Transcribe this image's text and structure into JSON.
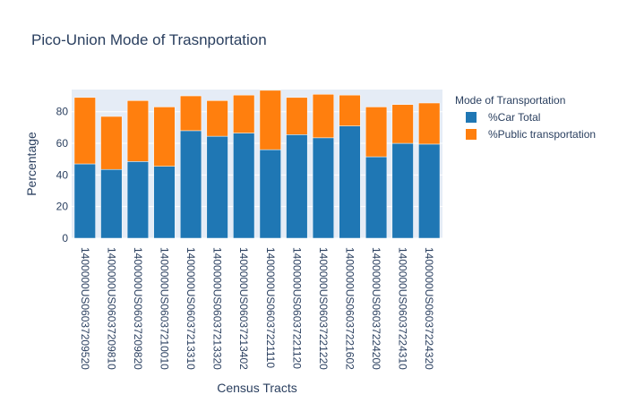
{
  "chart_data": {
    "type": "bar",
    "stacked": true,
    "title": "Pico-Union Mode of Trasnportation",
    "xlabel": "Census Tracts",
    "ylabel": "Percentage",
    "ylim": [
      0,
      94
    ],
    "yticks": [
      0,
      20,
      40,
      60,
      80
    ],
    "grid": true,
    "legend_title": "Mode of Transportation",
    "legend_position": "right",
    "categories": [
      "1400000US06037209520",
      "1400000US06037209810",
      "1400000US06037209820",
      "1400000US06037210010",
      "1400000US06037213310",
      "1400000US06037213320",
      "1400000US06037213402",
      "1400000US06037221110",
      "1400000US06037221120",
      "1400000US06037221220",
      "1400000US06037221602",
      "1400000US06037224200",
      "1400000US06037224310",
      "1400000US06037224320"
    ],
    "series": [
      {
        "name": "%Car Total",
        "color": "#1f77b4",
        "values": [
          47,
          43.5,
          48.5,
          45.5,
          68,
          64.5,
          66.5,
          56,
          65.5,
          63.5,
          71,
          51.5,
          60,
          59.5
        ]
      },
      {
        "name": "%Public transportation",
        "color": "#ff7f0e",
        "values": [
          42,
          33.5,
          38.5,
          37.5,
          22,
          22.5,
          24,
          37.5,
          23.5,
          27.5,
          19.5,
          31.5,
          24.5,
          26
        ]
      }
    ]
  }
}
